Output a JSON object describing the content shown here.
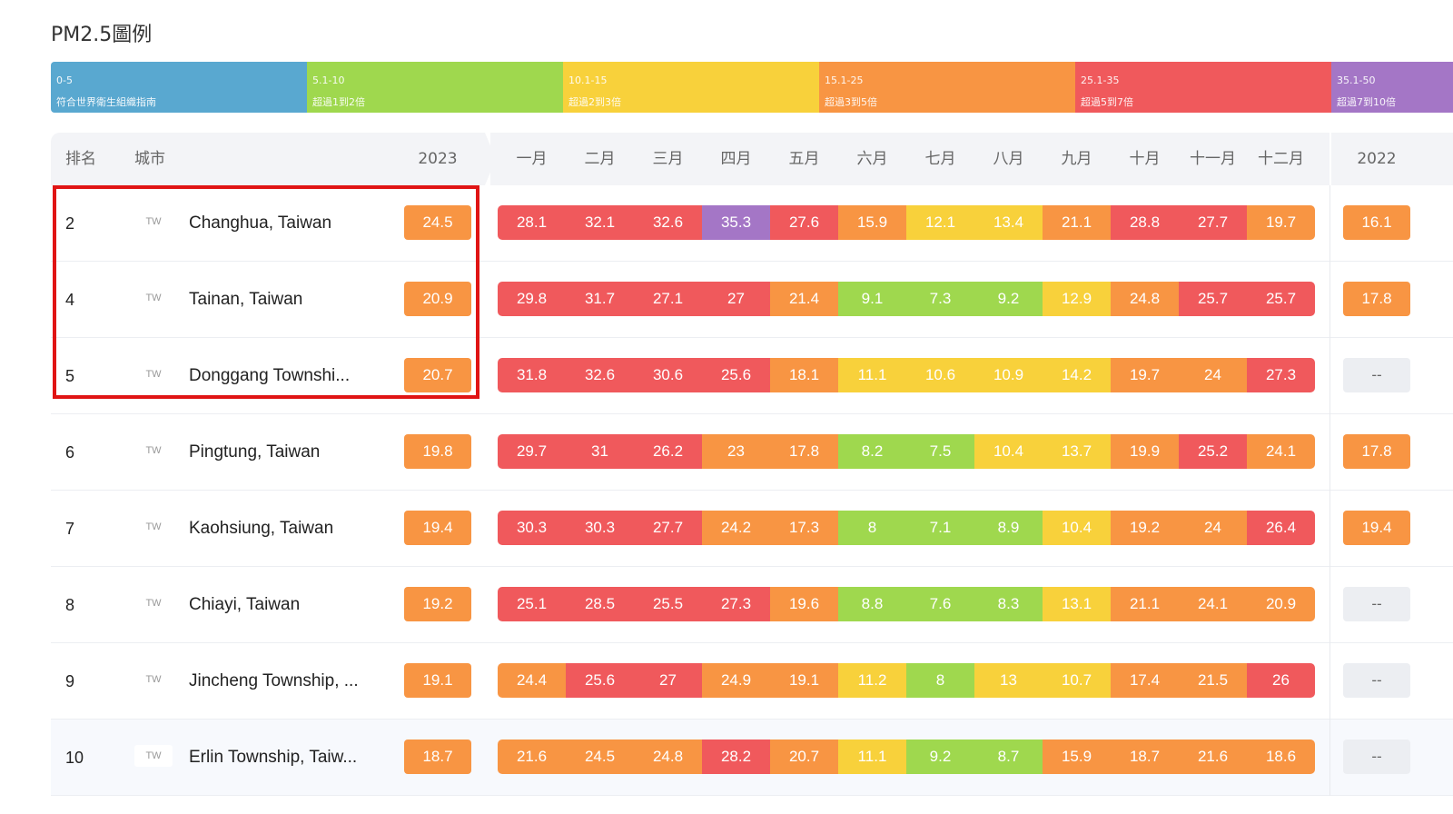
{
  "title": "PM2.5圖例",
  "legend": [
    {
      "range": "0-5",
      "desc": "符合世界衛生組織指南",
      "color": "#59a8d0"
    },
    {
      "range": "5.1-10",
      "desc": "超過1到2倍",
      "color": "#9fd84e"
    },
    {
      "range": "10.1-15",
      "desc": "超過2到3倍",
      "color": "#f8d13b"
    },
    {
      "range": "15.1-25",
      "desc": "超過3到5倍",
      "color": "#f89543"
    },
    {
      "range": "25.1-35",
      "desc": "超過5到7倍",
      "color": "#f0595c"
    },
    {
      "range": "35.1-50",
      "desc": "超過7到10倍",
      "color": "#a476c6"
    }
  ],
  "header": {
    "rank": "排名",
    "city": "城市",
    "year_current": "2023",
    "months": [
      "一月",
      "二月",
      "三月",
      "四月",
      "五月",
      "六月",
      "七月",
      "八月",
      "九月",
      "十月",
      "十一月",
      "十二月"
    ],
    "year_previous": "2022"
  },
  "rows": [
    {
      "rank": "2",
      "country": "TW",
      "city": "Changhua, Taiwan",
      "y2023": "24.5",
      "months": [
        "28.1",
        "32.1",
        "32.6",
        "35.3",
        "27.6",
        "15.9",
        "12.1",
        "13.4",
        "21.1",
        "28.8",
        "27.7",
        "19.7"
      ],
      "y2022": "16.1"
    },
    {
      "rank": "4",
      "country": "TW",
      "city": "Tainan, Taiwan",
      "y2023": "20.9",
      "months": [
        "29.8",
        "31.7",
        "27.1",
        "27",
        "21.4",
        "9.1",
        "7.3",
        "9.2",
        "12.9",
        "24.8",
        "25.7",
        "25.7"
      ],
      "y2022": "17.8"
    },
    {
      "rank": "5",
      "country": "TW",
      "city": "Donggang Townshi...",
      "y2023": "20.7",
      "months": [
        "31.8",
        "32.6",
        "30.6",
        "25.6",
        "18.1",
        "11.1",
        "10.6",
        "10.9",
        "14.2",
        "19.7",
        "24",
        "27.3"
      ],
      "y2022": "--"
    },
    {
      "rank": "6",
      "country": "TW",
      "city": "Pingtung, Taiwan",
      "y2023": "19.8",
      "months": [
        "29.7",
        "31",
        "26.2",
        "23",
        "17.8",
        "8.2",
        "7.5",
        "10.4",
        "13.7",
        "19.9",
        "25.2",
        "24.1"
      ],
      "y2022": "17.8"
    },
    {
      "rank": "7",
      "country": "TW",
      "city": "Kaohsiung, Taiwan",
      "y2023": "19.4",
      "months": [
        "30.3",
        "30.3",
        "27.7",
        "24.2",
        "17.3",
        "8",
        "7.1",
        "8.9",
        "10.4",
        "19.2",
        "24",
        "26.4"
      ],
      "y2022": "19.4"
    },
    {
      "rank": "8",
      "country": "TW",
      "city": "Chiayi, Taiwan",
      "y2023": "19.2",
      "months": [
        "25.1",
        "28.5",
        "25.5",
        "27.3",
        "19.6",
        "8.8",
        "7.6",
        "8.3",
        "13.1",
        "21.1",
        "24.1",
        "20.9"
      ],
      "y2022": "--"
    },
    {
      "rank": "9",
      "country": "TW",
      "city": "Jincheng Township, ...",
      "y2023": "19.1",
      "months": [
        "24.4",
        "25.6",
        "27",
        "24.9",
        "19.1",
        "11.2",
        "8",
        "13",
        "10.7",
        "17.4",
        "21.5",
        "26"
      ],
      "y2022": "--"
    },
    {
      "rank": "10",
      "country": "TW",
      "city": "Erlin Township, Taiw...",
      "y2023": "18.7",
      "months": [
        "21.6",
        "24.5",
        "24.8",
        "28.2",
        "20.7",
        "11.1",
        "9.2",
        "8.7",
        "15.9",
        "18.7",
        "21.6",
        "18.6"
      ],
      "y2022": "--"
    }
  ]
}
